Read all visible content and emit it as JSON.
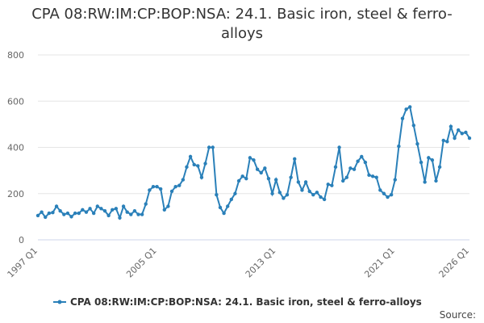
{
  "chart_data": {
    "type": "line",
    "title": "CPA 08:RW:IM:CP:BOP:NSA: 24.1. Basic iron, steel & ferro-alloys",
    "categories": [
      "1997 Q1",
      null,
      null,
      null,
      null,
      null,
      null,
      null,
      null,
      null,
      null,
      null,
      null,
      null,
      null,
      null,
      null,
      null,
      null,
      null,
      null,
      null,
      null,
      null,
      null,
      null,
      null,
      null,
      null,
      null,
      null,
      null,
      "2005 Q1",
      null,
      null,
      null,
      null,
      null,
      null,
      null,
      null,
      null,
      null,
      null,
      null,
      null,
      null,
      null,
      null,
      null,
      null,
      null,
      null,
      null,
      null,
      null,
      null,
      null,
      null,
      null,
      null,
      null,
      null,
      null,
      "2013 Q1",
      null,
      null,
      null,
      null,
      null,
      null,
      null,
      null,
      null,
      null,
      null,
      null,
      null,
      null,
      null,
      null,
      null,
      null,
      null,
      null,
      null,
      null,
      null,
      null,
      null,
      null,
      null,
      null,
      null,
      null,
      null,
      "2021 Q1",
      null,
      null,
      null,
      null,
      null,
      null,
      null,
      null,
      null,
      null,
      null,
      null,
      null,
      null,
      null,
      null,
      null,
      null,
      null,
      "2026 Q1"
    ],
    "series": [
      {
        "name": "CPA 08:RW:IM:CP:BOP:NSA: 24.1. Basic iron, steel & ferro-alloys",
        "color": "#2a80b9",
        "values": [
          105,
          120,
          98,
          115,
          118,
          145,
          125,
          110,
          115,
          100,
          115,
          115,
          130,
          120,
          135,
          115,
          145,
          135,
          125,
          105,
          130,
          135,
          95,
          145,
          120,
          110,
          125,
          110,
          110,
          155,
          215,
          230,
          230,
          220,
          130,
          145,
          210,
          230,
          235,
          260,
          315,
          360,
          325,
          320,
          270,
          330,
          400,
          400,
          195,
          140,
          115,
          145,
          175,
          200,
          255,
          275,
          265,
          355,
          345,
          305,
          290,
          310,
          265,
          200,
          260,
          205,
          180,
          195,
          270,
          350,
          250,
          215,
          250,
          210,
          195,
          205,
          185,
          175,
          240,
          235,
          315,
          400,
          255,
          270,
          310,
          305,
          340,
          360,
          335,
          280,
          275,
          270,
          215,
          200,
          185,
          195,
          260,
          405,
          525,
          565,
          575,
          495,
          415,
          335,
          250,
          355,
          345,
          255,
          315,
          430,
          425,
          490,
          440,
          475,
          460,
          465,
          440
        ]
      }
    ],
    "ylim": [
      0,
      800
    ],
    "yticks": [
      0,
      200,
      400,
      600,
      800
    ],
    "grid": true,
    "source": "Source:"
  }
}
